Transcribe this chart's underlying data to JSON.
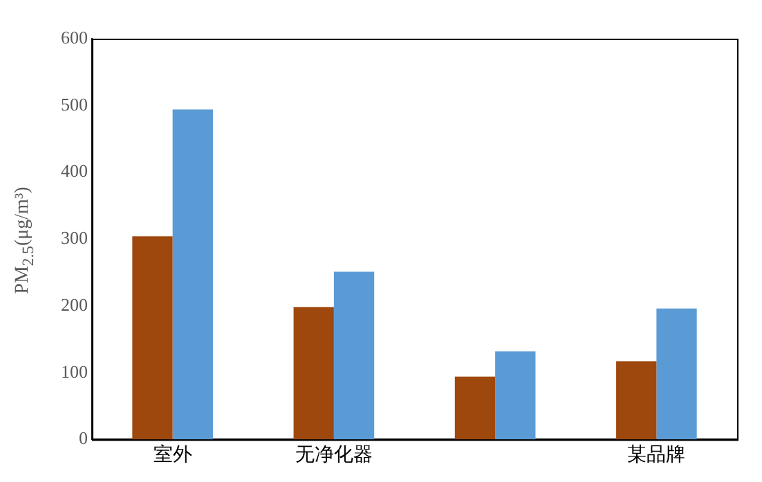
{
  "chart_data": {
    "type": "bar",
    "ylabel": "PM$_{2.5}$(μg/m³)",
    "categories": [
      "室外",
      "无净化器",
      null,
      "某品牌"
    ],
    "series": [
      {
        "color": "#9e480e",
        "values": [
          304,
          198,
          94,
          117
        ]
      },
      {
        "color": "#5b9bd5",
        "values": [
          494,
          251,
          132,
          196
        ]
      }
    ],
    "ylim": [
      0,
      600
    ],
    "yticks": [
      0,
      100,
      200,
      300,
      400,
      500,
      600
    ],
    "grid": false,
    "legend": false
  }
}
